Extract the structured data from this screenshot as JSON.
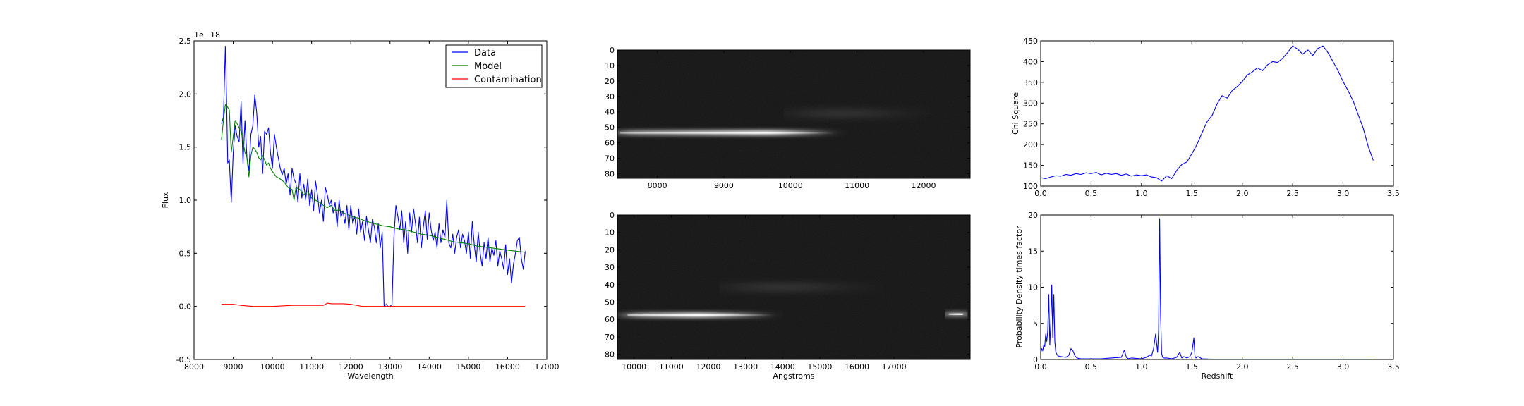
{
  "chart_data": [
    {
      "type": "line",
      "panel": "spectrum",
      "offset_text": "1e−18",
      "xlabel": "Wavelength",
      "ylabel": "Flux",
      "xlim": [
        8000,
        17000
      ],
      "ylim": [
        -0.5,
        2.5
      ],
      "xticks": [
        8000,
        9000,
        10000,
        11000,
        12000,
        13000,
        14000,
        15000,
        16000,
        17000
      ],
      "yticks": [
        -0.5,
        0.0,
        0.5,
        1.0,
        1.5,
        2.0,
        2.5
      ],
      "legend_position": "top-right",
      "series": [
        {
          "name": "Data",
          "color": "#0000ff",
          "x": [
            8700,
            8750,
            8800,
            8830,
            8860,
            8900,
            8950,
            9000,
            9050,
            9100,
            9150,
            9200,
            9250,
            9300,
            9350,
            9400,
            9450,
            9500,
            9550,
            9600,
            9650,
            9700,
            9750,
            9800,
            9850,
            9900,
            9950,
            10000,
            10050,
            10100,
            10150,
            10200,
            10250,
            10300,
            10350,
            10400,
            10450,
            10500,
            10550,
            10600,
            10650,
            10700,
            10750,
            10800,
            10850,
            10900,
            10950,
            11000,
            11050,
            11100,
            11150,
            11200,
            11250,
            11300,
            11350,
            11400,
            11450,
            11500,
            11550,
            11600,
            11650,
            11700,
            11750,
            11800,
            11850,
            11900,
            11950,
            12000,
            12050,
            12100,
            12150,
            12200,
            12250,
            12300,
            12350,
            12400,
            12450,
            12500,
            12550,
            12600,
            12650,
            12700,
            12750,
            12800,
            12850,
            12900,
            12950,
            13000,
            13050,
            13100,
            13150,
            13200,
            13250,
            13300,
            13350,
            13400,
            13450,
            13500,
            13550,
            13600,
            13650,
            13700,
            13750,
            13800,
            13850,
            13900,
            13950,
            14000,
            14050,
            14100,
            14150,
            14200,
            14250,
            14300,
            14350,
            14400,
            14450,
            14500,
            14550,
            14600,
            14650,
            14700,
            14750,
            14800,
            14850,
            14900,
            14950,
            15000,
            15050,
            15100,
            15150,
            15200,
            15250,
            15300,
            15350,
            15400,
            15450,
            15500,
            15550,
            15600,
            15650,
            15700,
            15750,
            15800,
            15850,
            15900,
            15950,
            16000,
            16050,
            16100,
            16150,
            16200,
            16250,
            16300,
            16350,
            16400,
            16450
          ],
          "y": [
            1.72,
            1.78,
            2.45,
            1.95,
            1.35,
            1.38,
            0.98,
            1.45,
            1.7,
            1.6,
            1.55,
            1.93,
            1.35,
            1.75,
            1.4,
            1.28,
            1.62,
            1.7,
            1.99,
            1.82,
            1.5,
            1.6,
            1.25,
            1.65,
            1.62,
            1.68,
            1.45,
            1.3,
            1.62,
            1.5,
            1.4,
            1.3,
            1.24,
            1.3,
            1.15,
            1.25,
            1.05,
            1.3,
            1.2,
            1.16,
            0.98,
            1.25,
            1.02,
            1.15,
            1.0,
            1.2,
            0.95,
            1.1,
            0.9,
            1.18,
            1.05,
            0.88,
            1.0,
            0.8,
            1.12,
            1.05,
            0.95,
            1.0,
            0.88,
            0.98,
            0.75,
            1.0,
            0.84,
            0.9,
            0.78,
            0.95,
            0.72,
            0.95,
            0.78,
            0.85,
            0.68,
            0.92,
            0.7,
            0.8,
            0.62,
            0.85,
            0.72,
            0.6,
            0.82,
            0.75,
            0.6,
            0.78,
            0.55,
            0.7,
            0.0,
            0.02,
            0.0,
            0.0,
            0.02,
            0.65,
            0.95,
            0.85,
            0.72,
            0.9,
            0.6,
            0.8,
            0.5,
            0.88,
            0.7,
            0.92,
            0.78,
            0.6,
            0.84,
            0.55,
            0.75,
            0.9,
            0.63,
            0.88,
            0.72,
            0.62,
            0.7,
            0.55,
            0.78,
            0.6,
            0.72,
            0.65,
            1.0,
            0.6,
            0.55,
            0.68,
            0.5,
            0.65,
            0.72,
            0.55,
            0.68,
            0.62,
            0.5,
            0.7,
            0.45,
            0.8,
            0.58,
            0.42,
            0.7,
            0.5,
            0.38,
            0.6,
            0.45,
            0.65,
            0.42,
            0.55,
            0.48,
            0.62,
            0.38,
            0.52,
            0.45,
            0.35,
            0.58,
            0.3,
            0.45,
            0.22,
            0.4,
            0.5,
            0.62,
            0.65,
            0.45,
            0.35,
            0.52
          ]
        },
        {
          "name": "Model",
          "color": "#008000",
          "x": [
            8700,
            8750,
            8800,
            8850,
            8900,
            8950,
            9000,
            9050,
            9100,
            9150,
            9200,
            9250,
            9300,
            9350,
            9400,
            9450,
            9500,
            9550,
            9600,
            9650,
            9700,
            9750,
            9800,
            9850,
            9900,
            9950,
            10000,
            10100,
            10200,
            10300,
            10400,
            10500,
            10550,
            10600,
            10700,
            10800,
            10900,
            11000,
            11100,
            11200,
            11300,
            11400,
            11500,
            11600,
            11700,
            11800,
            11900,
            12000,
            12200,
            12400,
            12600,
            12800,
            13000,
            13200,
            13400,
            13600,
            13800,
            14000,
            14200,
            14400,
            14600,
            14800,
            15000,
            15200,
            15400,
            15600,
            15800,
            16000,
            16200,
            16450
          ],
          "y": [
            1.57,
            1.75,
            1.9,
            1.88,
            1.85,
            1.45,
            1.6,
            1.75,
            1.72,
            1.68,
            1.65,
            1.55,
            1.45,
            1.4,
            1.22,
            1.42,
            1.5,
            1.48,
            1.45,
            1.4,
            1.38,
            1.42,
            1.38,
            1.33,
            1.35,
            1.3,
            1.27,
            1.22,
            1.2,
            1.17,
            1.12,
            1.1,
            1.0,
            1.12,
            1.1,
            1.05,
            1.08,
            1.02,
            1.0,
            0.98,
            0.95,
            0.93,
            0.95,
            0.9,
            0.91,
            0.88,
            0.87,
            0.85,
            0.83,
            0.8,
            0.78,
            0.76,
            0.75,
            0.73,
            0.72,
            0.7,
            0.68,
            0.67,
            0.65,
            0.63,
            0.61,
            0.6,
            0.59,
            0.57,
            0.56,
            0.55,
            0.54,
            0.53,
            0.52,
            0.51
          ]
        },
        {
          "name": "Contamination",
          "color": "#ff0000",
          "x": [
            8700,
            9000,
            9200,
            9500,
            10000,
            10500,
            11000,
            11300,
            11400,
            11500,
            11800,
            12000,
            12300,
            12500,
            13000,
            14000,
            15000,
            16000,
            16450
          ],
          "y": [
            0.02,
            0.02,
            0.01,
            0.0,
            0.0,
            0.01,
            0.01,
            0.01,
            0.03,
            0.025,
            0.025,
            0.02,
            0.0,
            0.0,
            0.0,
            0.0,
            0.0,
            0.0,
            0.0
          ]
        }
      ]
    },
    {
      "type": "heatmap",
      "panel": "spectrum-image-top",
      "x_ticks": [
        "8000",
        "9000",
        "10000",
        "11000",
        "12000"
      ],
      "x_tick_values": [
        8000,
        9000,
        10000,
        11000,
        12000
      ],
      "x_range": [
        7400,
        12700
      ],
      "y_ticks": [
        "0",
        "10",
        "20",
        "30",
        "40",
        "50",
        "60",
        "70",
        "80"
      ],
      "y_range": [
        0,
        83
      ],
      "traces": [
        {
          "x_start": 7400,
          "x_end": 10700,
          "row": 53.5,
          "peak_x": 9700,
          "faint": false
        },
        {
          "x_start": 10000,
          "x_end": 12000,
          "row": 41,
          "peak_x": 10800,
          "faint": true
        }
      ]
    },
    {
      "type": "heatmap",
      "panel": "spectrum-image-bottom",
      "xlabel": "Angstroms",
      "x_ticks": [
        "10000",
        "11000",
        "12000",
        "13000",
        "14000",
        "15000",
        "16000",
        "17000"
      ],
      "x_tick_values": [
        10000,
        11000,
        12000,
        13000,
        14000,
        15000,
        16000,
        17000
      ],
      "x_range": [
        9550,
        19050
      ],
      "y_ticks": [
        "0",
        "10",
        "20",
        "30",
        "40",
        "50",
        "60",
        "70",
        "80"
      ],
      "y_range": [
        0,
        83
      ],
      "traces": [
        {
          "x_start": 9750,
          "x_end": 13800,
          "row": 57.5,
          "peak_x": 11800,
          "faint": false
        },
        {
          "x_start": 12500,
          "x_end": 16500,
          "row": 41.5,
          "peak_x": 14000,
          "faint": true
        },
        {
          "x_start": 18400,
          "x_end": 18950,
          "row": 57,
          "peak_x": 18900,
          "faint": false
        }
      ]
    },
    {
      "type": "line",
      "panel": "chi-square",
      "ylabel": "Chi Square",
      "xlim": [
        0.0,
        3.5
      ],
      "ylim": [
        100,
        450
      ],
      "xticks": [
        0.0,
        0.5,
        1.0,
        1.5,
        2.0,
        2.5,
        3.0,
        3.5
      ],
      "yticks": [
        100,
        150,
        200,
        250,
        300,
        350,
        400,
        450
      ],
      "series": [
        {
          "color": "#0000ff",
          "x": [
            0.0,
            0.05,
            0.1,
            0.15,
            0.2,
            0.25,
            0.3,
            0.35,
            0.4,
            0.45,
            0.5,
            0.55,
            0.6,
            0.65,
            0.7,
            0.75,
            0.8,
            0.85,
            0.9,
            0.95,
            1.0,
            1.05,
            1.1,
            1.15,
            1.2,
            1.25,
            1.3,
            1.35,
            1.4,
            1.45,
            1.5,
            1.55,
            1.6,
            1.65,
            1.7,
            1.75,
            1.8,
            1.85,
            1.9,
            1.95,
            2.0,
            2.05,
            2.1,
            2.15,
            2.2,
            2.25,
            2.3,
            2.35,
            2.4,
            2.45,
            2.5,
            2.55,
            2.6,
            2.65,
            2.7,
            2.75,
            2.8,
            2.85,
            2.9,
            2.95,
            3.0,
            3.05,
            3.1,
            3.15,
            3.2,
            3.25,
            3.3
          ],
          "y": [
            120,
            118,
            122,
            125,
            124,
            128,
            126,
            130,
            128,
            132,
            130,
            133,
            127,
            131,
            128,
            130,
            126,
            129,
            124,
            127,
            125,
            127,
            122,
            120,
            112,
            125,
            118,
            138,
            152,
            158,
            178,
            200,
            228,
            255,
            270,
            298,
            318,
            312,
            330,
            340,
            352,
            368,
            375,
            385,
            378,
            392,
            400,
            398,
            408,
            422,
            438,
            430,
            418,
            428,
            415,
            432,
            438,
            422,
            400,
            378,
            352,
            330,
            305,
            272,
            240,
            195,
            162
          ]
        }
      ]
    },
    {
      "type": "line",
      "panel": "probability-density",
      "xlabel": "Redshift",
      "ylabel": "Probability Density times factor",
      "xlim": [
        0.0,
        3.5
      ],
      "ylim": [
        0,
        20
      ],
      "xticks": [
        0.0,
        0.5,
        1.0,
        1.5,
        2.0,
        2.5,
        3.0,
        3.5
      ],
      "yticks": [
        0,
        5,
        10,
        15,
        20
      ],
      "series": [
        {
          "color": "#0000ff",
          "x": [
            0.0,
            0.01,
            0.02,
            0.03,
            0.04,
            0.05,
            0.06,
            0.07,
            0.08,
            0.09,
            0.1,
            0.11,
            0.12,
            0.13,
            0.14,
            0.15,
            0.17,
            0.2,
            0.25,
            0.28,
            0.3,
            0.32,
            0.34,
            0.36,
            0.4,
            0.5,
            0.6,
            0.7,
            0.8,
            0.83,
            0.85,
            0.87,
            0.9,
            1.0,
            1.05,
            1.08,
            1.1,
            1.12,
            1.14,
            1.16,
            1.17,
            1.18,
            1.19,
            1.2,
            1.21,
            1.22,
            1.25,
            1.3,
            1.35,
            1.38,
            1.4,
            1.42,
            1.45,
            1.48,
            1.5,
            1.52,
            1.53,
            1.54,
            1.56,
            1.6,
            1.7,
            2.0,
            2.5,
            3.0,
            3.3
          ],
          "y": [
            0.8,
            1.5,
            1.2,
            2.0,
            1.8,
            3.5,
            2.5,
            4.0,
            9.0,
            2.0,
            5.0,
            10.3,
            3.0,
            9.0,
            2.5,
            1.0,
            0.5,
            0.4,
            0.3,
            0.6,
            1.5,
            1.2,
            0.5,
            0.2,
            0.1,
            0.1,
            0.1,
            0.2,
            0.3,
            1.3,
            0.3,
            0.1,
            0.2,
            0.1,
            0.3,
            0.6,
            0.5,
            1.5,
            3.5,
            1.0,
            4.0,
            19.5,
            6.0,
            0.8,
            0.3,
            0.2,
            0.2,
            0.1,
            0.3,
            1.0,
            0.2,
            0.4,
            0.2,
            0.4,
            1.0,
            3.0,
            0.5,
            0.2,
            0.4,
            0.1,
            0.05,
            0.05,
            0.05,
            0.05,
            0.05
          ]
        }
      ]
    }
  ]
}
